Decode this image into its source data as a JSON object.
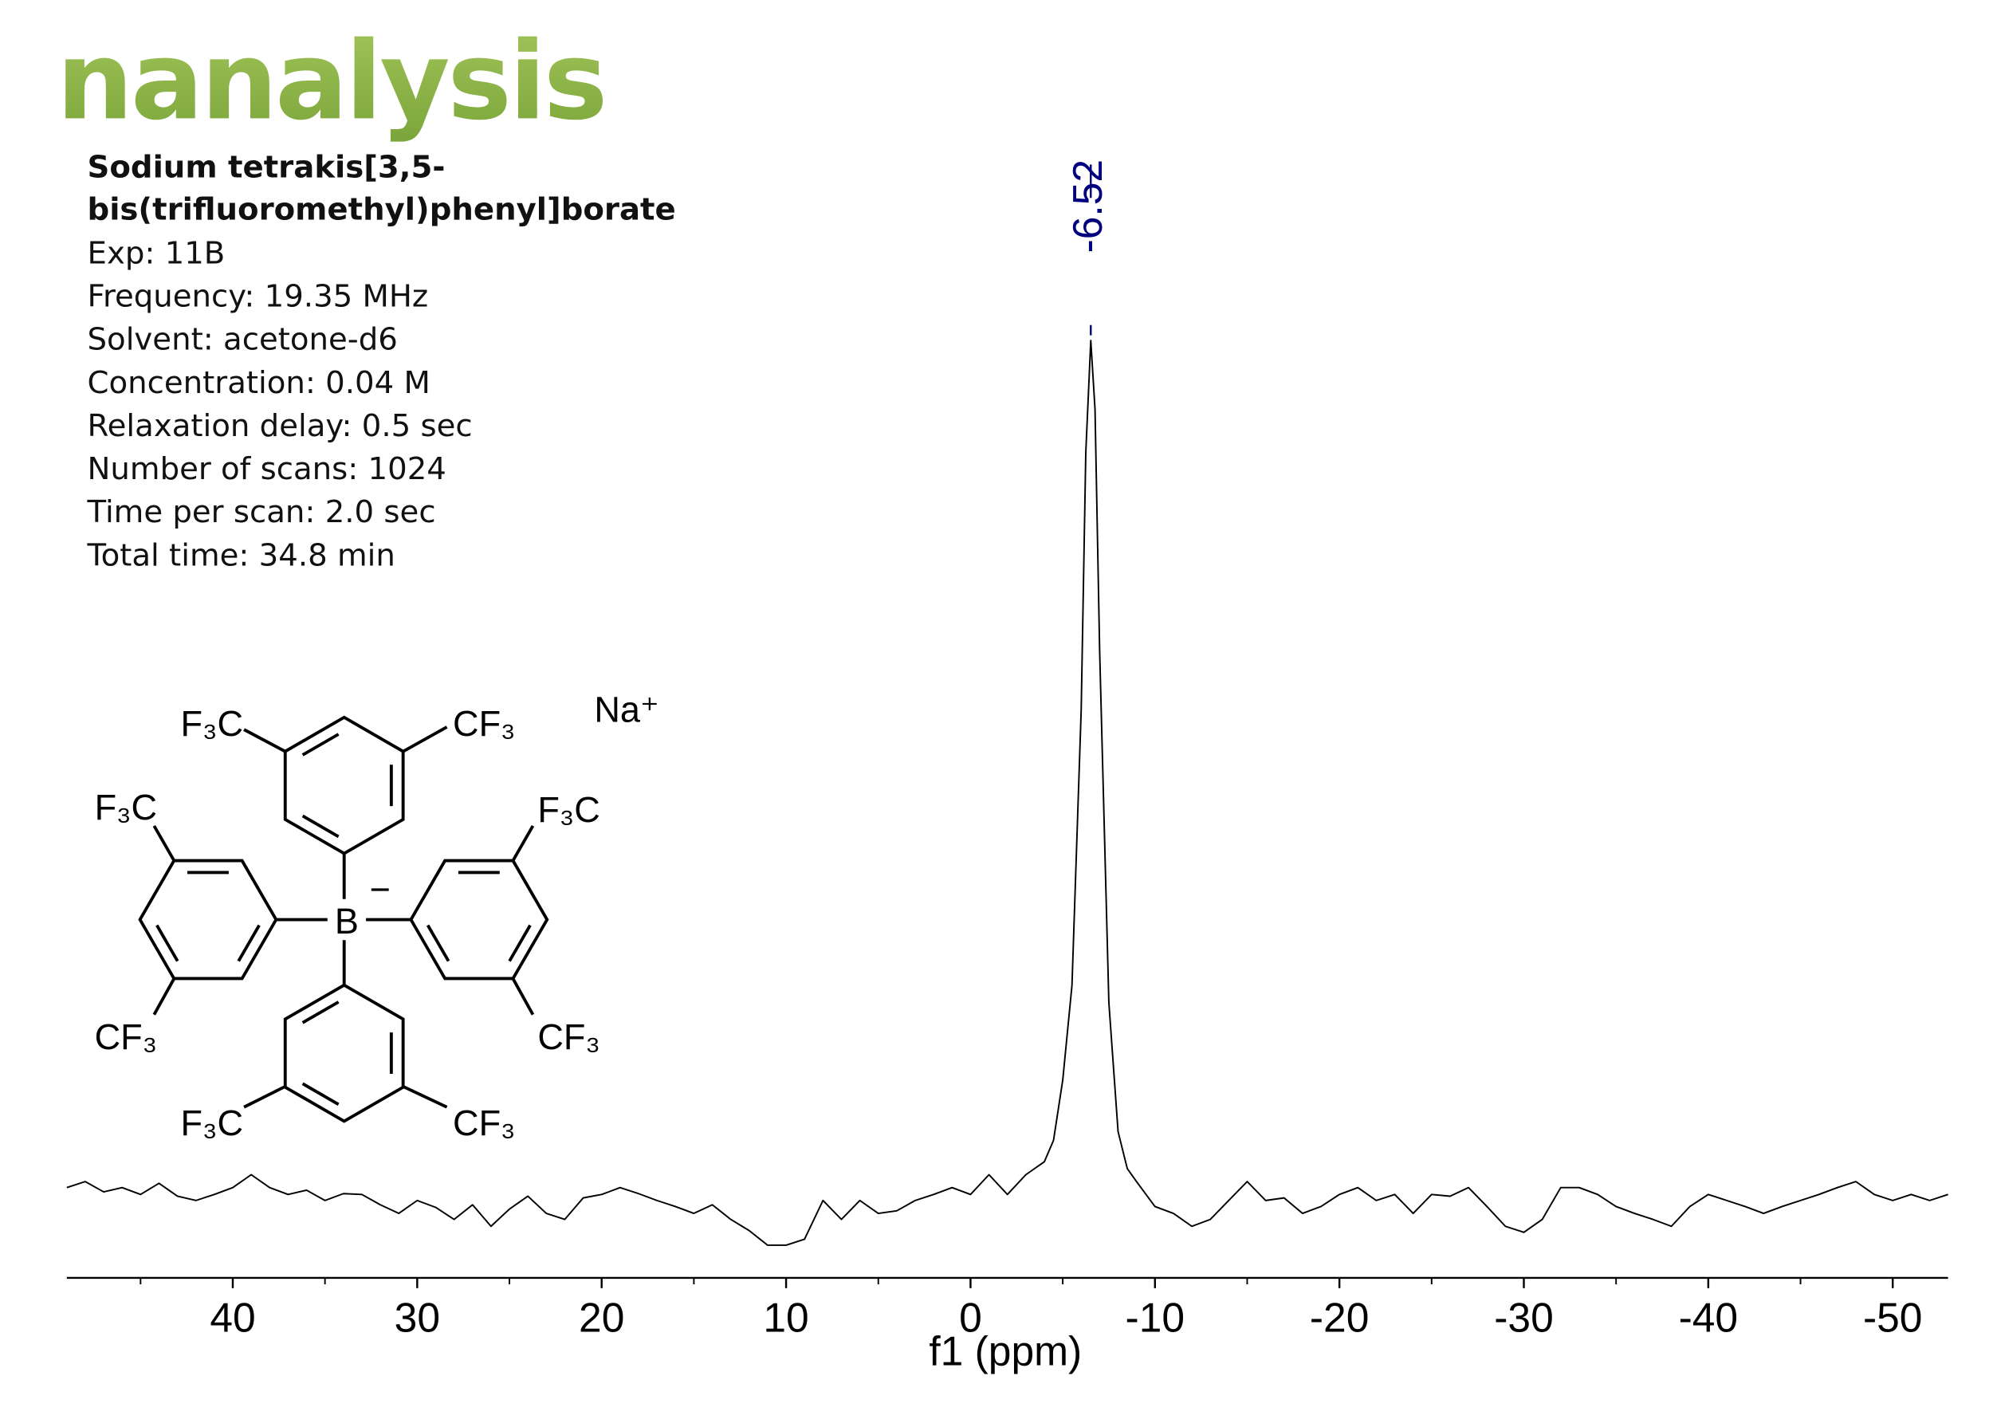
{
  "header": {
    "logo": "nanalysis",
    "title_lines": [
      "Sodium tetrakis[3,5-",
      "bis(trifluoromethyl)phenyl]borate"
    ],
    "info": [
      "Exp: 11B",
      "Frequency: 19.35 MHz",
      "Solvent: acetone-d6",
      "Concentration: 0.04 M",
      "Relaxation delay: 0.5 sec",
      "Number of scans: 1024",
      "Time per scan: 2.0 sec",
      "Total time: 34.8 min"
    ]
  },
  "structure": {
    "labels": [
      "F₃C",
      "CF₃",
      "F₃C",
      "CF₃",
      "F₃C",
      "CF₃",
      "F₃C",
      "CF₃",
      "Na⁺",
      "B",
      "−"
    ]
  },
  "chart_data": {
    "type": "line",
    "xlabel": "f1 (ppm)",
    "color": "#000000",
    "peak_color": "#00007f",
    "peaks": [
      -6.52
    ],
    "xlim": [
      49,
      -53
    ],
    "ylim": [
      -9,
      100
    ],
    "xticks": [
      40,
      30,
      20,
      10,
      0,
      -10,
      -20,
      -30,
      -40,
      -50
    ],
    "xminorticks": [
      45,
      35,
      25,
      15,
      5,
      -5,
      -15,
      -25,
      -35,
      -45
    ],
    "x": [
      49,
      48,
      47,
      46,
      45,
      44,
      43,
      42,
      41,
      40,
      39,
      38,
      37,
      36,
      35,
      34,
      33,
      32,
      31,
      30,
      29,
      28,
      27,
      26,
      25,
      24,
      23,
      22,
      21,
      20,
      19,
      18,
      17,
      16,
      15,
      14,
      13,
      12,
      11,
      10,
      9,
      8,
      7,
      6,
      5,
      4,
      3,
      2,
      1,
      0,
      -1,
      -2,
      -3,
      -4,
      -4.5,
      -5,
      -5.5,
      -6,
      -6.25,
      -6.52,
      -6.75,
      -7,
      -7.5,
      -8,
      -8.5,
      -9,
      -10,
      -11,
      -12,
      -13,
      -14,
      -15,
      -16,
      -17,
      -18,
      -19,
      -20,
      -21,
      -22,
      -23,
      -24,
      -25,
      -26,
      -27,
      -28,
      -29,
      -30,
      -31,
      -32,
      -33,
      -34,
      -35,
      -36,
      -37,
      -38,
      -39,
      -40,
      -41,
      -42,
      -43,
      -44,
      -45,
      -46,
      -47,
      -48,
      -49,
      -50,
      -51,
      -52,
      -53
    ],
    "values": [
      1.5,
      2.2,
      1.0,
      1.5,
      0.7,
      2.0,
      0.5,
      0,
      0.7,
      1.5,
      3.0,
      1.5,
      0.7,
      1.2,
      0,
      0.8,
      0.7,
      -0.5,
      -1.5,
      0,
      -0.8,
      -2.2,
      -0.5,
      -3.0,
      -1.0,
      0.5,
      -1.5,
      -2.2,
      0.3,
      0.7,
      1.5,
      0.8,
      0,
      -0.7,
      -1.5,
      -0.5,
      -2.2,
      -3.5,
      -5.2,
      -5.2,
      -4.5,
      0,
      -2.2,
      0,
      -1.5,
      -1.2,
      0,
      0.7,
      1.5,
      0.7,
      3.0,
      0.7,
      3.0,
      4.5,
      7,
      14,
      25,
      57,
      87,
      100,
      92,
      64,
      23,
      8,
      3.7,
      2.2,
      -0.7,
      -1.5,
      -3.0,
      -2.2,
      0,
      2.2,
      0,
      0.3,
      -1.5,
      -0.7,
      0.7,
      1.5,
      0,
      0.7,
      -1.5,
      0.7,
      0.5,
      1.5,
      -0.7,
      -3.0,
      -3.7,
      -2.2,
      1.5,
      1.5,
      0.7,
      -0.7,
      -1.5,
      -2.2,
      -3.0,
      -0.7,
      0.7,
      0,
      -0.7,
      -1.5,
      -0.7,
      0,
      0.7,
      1.5,
      2.2,
      0.7,
      0,
      0.7,
      0,
      0.7
    ]
  }
}
